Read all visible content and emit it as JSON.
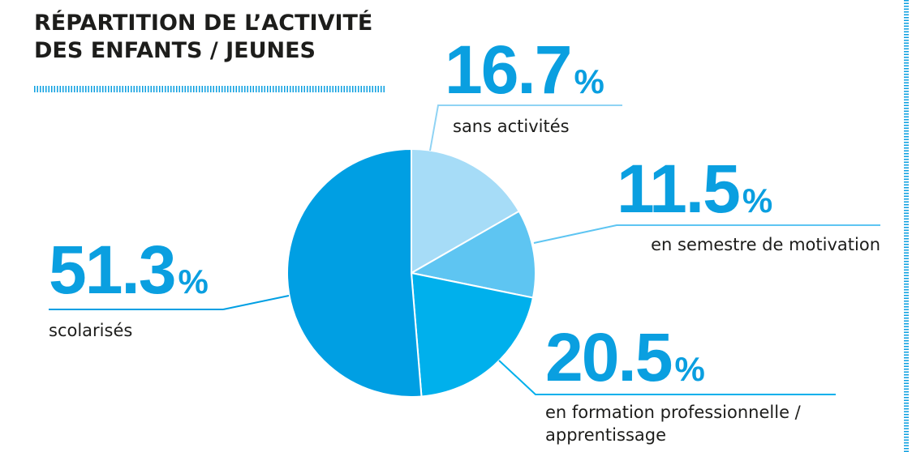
{
  "chart_data": {
    "type": "pie",
    "title": "RÉPARTITION DE L’ACTIVITÉ DES ENFANTS / JEUNES",
    "unit": "%",
    "categories": [
      "sans activités",
      "en semestre de motivation",
      "en formation professionnelle / apprentissage",
      "scolarisés"
    ],
    "values": [
      16.7,
      11.5,
      20.5,
      51.3
    ],
    "colors": [
      "#a6dcf7",
      "#5ec5f2",
      "#00b0ec",
      "#009fe3"
    ]
  }
}
